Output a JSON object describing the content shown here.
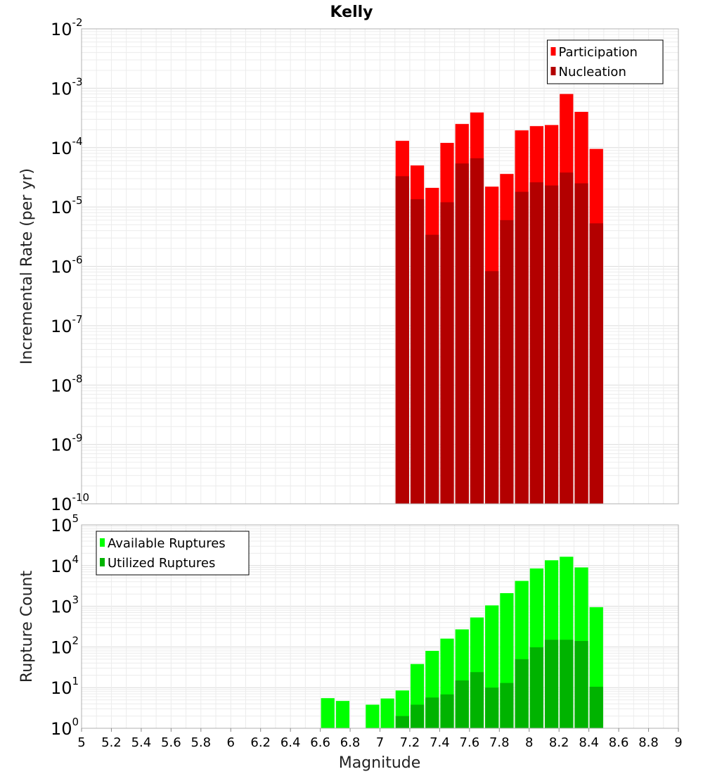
{
  "chart_data": {
    "title": "Kelly",
    "xlabel": "Magnitude",
    "x_ticks": [
      "5",
      "5.2",
      "5.4",
      "5.6",
      "5.8",
      "6",
      "6.2",
      "6.4",
      "6.6",
      "6.8",
      "7",
      "7.2",
      "7.4",
      "7.6",
      "7.8",
      "8",
      "8.2",
      "8.4",
      "8.6",
      "8.8",
      "9"
    ],
    "xlim": [
      5,
      9
    ],
    "bin_width": 0.1,
    "panels": [
      {
        "type": "bar",
        "ylabel": "Incremental Rate (per yr)",
        "yscale": "log",
        "ylim_exp": [
          -10,
          -2
        ],
        "legend": {
          "position": "top-right"
        },
        "x": [
          7.15,
          7.25,
          7.35,
          7.45,
          7.55,
          7.65,
          7.75,
          7.85,
          7.95,
          8.05,
          8.15,
          8.25,
          8.35,
          8.45
        ],
        "series": [
          {
            "name": "Participation",
            "color": "#ff0000",
            "values": [
              0.00013,
              5e-05,
              2.1e-05,
              0.00012,
              0.00025,
              0.00039,
              2.2e-05,
              3.6e-05,
              0.000195,
              0.00023,
              0.00024,
              0.0008,
              0.0004,
              9.5e-05
            ]
          },
          {
            "name": "Nucleation",
            "color": "#b30000",
            "values": [
              3.3e-05,
              1.35e-05,
              3.4e-06,
              1.2e-05,
              5.4e-05,
              6.6e-05,
              8.3e-07,
              6e-06,
              1.8e-05,
              2.6e-05,
              2.3e-05,
              3.8e-05,
              2.5e-05,
              5.3e-06
            ]
          }
        ]
      },
      {
        "type": "bar",
        "ylabel": "Rupture Count",
        "yscale": "log",
        "ylim_exp": [
          0,
          5
        ],
        "legend": {
          "position": "top-left"
        },
        "x": [
          6.65,
          6.75,
          6.95,
          7.05,
          7.15,
          7.25,
          7.35,
          7.45,
          7.55,
          7.65,
          7.75,
          7.85,
          7.95,
          8.05,
          8.15,
          8.25,
          8.35,
          8.45
        ],
        "series": [
          {
            "name": "Available Ruptures",
            "color": "#00ff00",
            "values": [
              5.5,
              4.7,
              3.8,
              5.4,
              8.5,
              38,
              80,
              160,
              270,
              530,
              1050,
              2100,
              4200,
              8500,
              13500,
              16500,
              9000,
              950
            ]
          },
          {
            "name": "Utilized Ruptures",
            "color": "#00b300",
            "values": [
              null,
              null,
              null,
              null,
              2,
              3.8,
              5.7,
              6.8,
              15,
              24,
              10,
              13,
              50,
              98,
              150,
              150,
              140,
              10.5
            ]
          }
        ]
      }
    ]
  }
}
